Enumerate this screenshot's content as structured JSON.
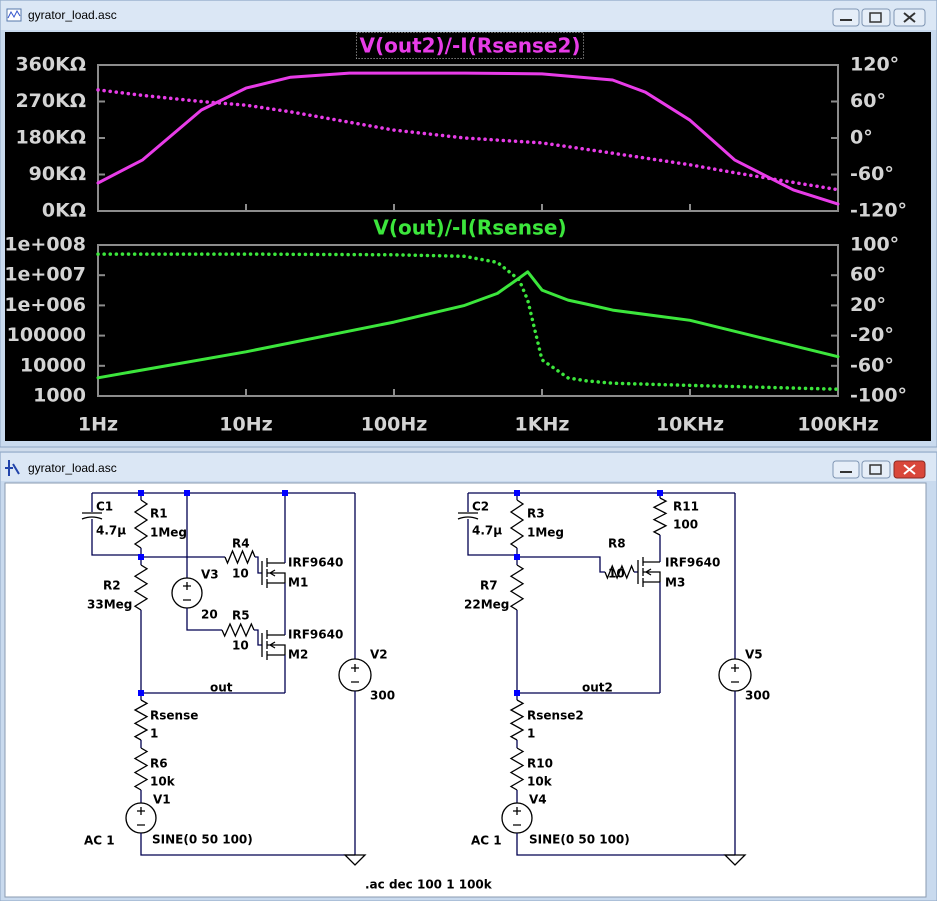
{
  "windows": [
    {
      "title": "gyrator_load.asc"
    },
    {
      "title": "gyrator_load.asc"
    }
  ],
  "chart_data": [
    {
      "type": "line",
      "title": "V(out2)/-I(Rsense2)",
      "xscale": "log",
      "x": [
        1,
        2,
        5,
        10,
        20,
        50,
        100,
        300,
        1000,
        3000,
        5000,
        10000,
        20000,
        50000,
        100000
      ],
      "series": [
        {
          "color": "#e83ce8",
          "style": "solid",
          "values": [
            69,
            126,
            249,
            303,
            330,
            340,
            340,
            340,
            338,
            323,
            293,
            224,
            126,
            52,
            17
          ]
        },
        {
          "color": "#e83ce8",
          "style": "dotted",
          "axis": "y2",
          "values": [
            79,
            70,
            60,
            54,
            43,
            26,
            13,
            0,
            -8,
            -25,
            -33,
            -44,
            -57,
            -73,
            -85
          ]
        }
      ],
      "xlim": [
        1,
        100000
      ],
      "xticks": [
        1,
        10,
        100,
        1000,
        10000,
        100000
      ],
      "ylim": [
        0,
        360
      ],
      "yticks": [
        {
          "value": 0,
          "label": "0KΩ"
        },
        {
          "value": 90,
          "label": "90KΩ"
        },
        {
          "value": 180,
          "label": "180KΩ"
        },
        {
          "value": 270,
          "label": "270KΩ"
        },
        {
          "value": 360,
          "label": "360KΩ"
        }
      ],
      "y2lim": [
        -120,
        120
      ],
      "y2ticks": [
        {
          "value": -120,
          "label": "-120°"
        },
        {
          "value": -60,
          "label": "-60°"
        },
        {
          "value": 0,
          "label": "0°"
        },
        {
          "value": 60,
          "label": "60°"
        },
        {
          "value": 120,
          "label": "120°"
        }
      ]
    },
    {
      "type": "line",
      "title": "V(out)/-I(Rsense)",
      "xscale": "log",
      "yscale": "log",
      "x": [
        1,
        10,
        100,
        300,
        500,
        700,
        800,
        1000,
        1500,
        2000,
        3000,
        10000,
        100000
      ],
      "series": [
        {
          "color": "#3ce63c",
          "style": "solid",
          "values": [
            4000,
            29000,
            280000,
            1000000,
            2500000,
            8000000,
            13000000,
            3200000,
            1500000,
            1100000,
            700000,
            320000,
            20000
          ]
        },
        {
          "color": "#3ce63c",
          "style": "dotted",
          "axis": "y2",
          "values": [
            88,
            88,
            87,
            85,
            77,
            54,
            27,
            -52,
            -76,
            -80,
            -83,
            -86,
            -91
          ]
        }
      ],
      "xlim": [
        1,
        100000
      ],
      "xticks": [
        {
          "value": 1,
          "label": "1Hz"
        },
        {
          "value": 10,
          "label": "10Hz"
        },
        {
          "value": 100,
          "label": "100Hz"
        },
        {
          "value": 1000,
          "label": "1KHz"
        },
        {
          "value": 10000,
          "label": "10KHz"
        },
        {
          "value": 100000,
          "label": "100KHz"
        }
      ],
      "ylim": [
        1000,
        100000000
      ],
      "yticks": [
        1000,
        10000,
        100000,
        {
          "value": 1000000,
          "label": "1e+006"
        },
        {
          "value": 10000000,
          "label": "1e+007"
        },
        {
          "value": 100000000,
          "label": "1e+008"
        }
      ],
      "y2lim": [
        -100,
        100
      ],
      "y2ticks": [
        {
          "value": -100,
          "label": "-100°"
        },
        {
          "value": -60,
          "label": "-60°"
        },
        {
          "value": -20,
          "label": "-20°"
        },
        {
          "value": 20,
          "label": "20°"
        },
        {
          "value": 60,
          "label": "60°"
        },
        {
          "value": 100,
          "label": "100°"
        }
      ]
    }
  ],
  "schematic": {
    "parts": [
      {
        "ref": "C1",
        "value": "4.7µ"
      },
      {
        "ref": "R1",
        "value": "1Meg"
      },
      {
        "ref": "R4",
        "value": "10"
      },
      {
        "ref": "M1",
        "value": "IRF9640"
      },
      {
        "ref": "V3",
        "value": "20"
      },
      {
        "ref": "R5",
        "value": "10"
      },
      {
        "ref": "M2",
        "value": "IRF9640"
      },
      {
        "ref": "R2",
        "value": "33Meg"
      },
      {
        "ref": "V2",
        "value": "300"
      },
      {
        "ref": "Rsense",
        "value": "1"
      },
      {
        "ref": "R6",
        "value": "10k"
      },
      {
        "ref": "V1",
        "value": "AC 1",
        "function": "SINE(0 50 100)"
      },
      {
        "ref": "C2",
        "value": "4.7µ"
      },
      {
        "ref": "R3",
        "value": "1Meg"
      },
      {
        "ref": "R8",
        "value": "10"
      },
      {
        "ref": "M3",
        "value": "IRF9640"
      },
      {
        "ref": "R11",
        "value": "100"
      },
      {
        "ref": "R7",
        "value": "22Meg"
      },
      {
        "ref": "V5",
        "value": "300"
      },
      {
        "ref": "Rsense2",
        "value": "1"
      },
      {
        "ref": "R10",
        "value": "10k"
      },
      {
        "ref": "V4",
        "value": "AC 1",
        "function": "SINE(0 50 100)"
      }
    ],
    "nets": [
      "out",
      "out2"
    ],
    "directive": ".ac dec 100 1 100k"
  }
}
